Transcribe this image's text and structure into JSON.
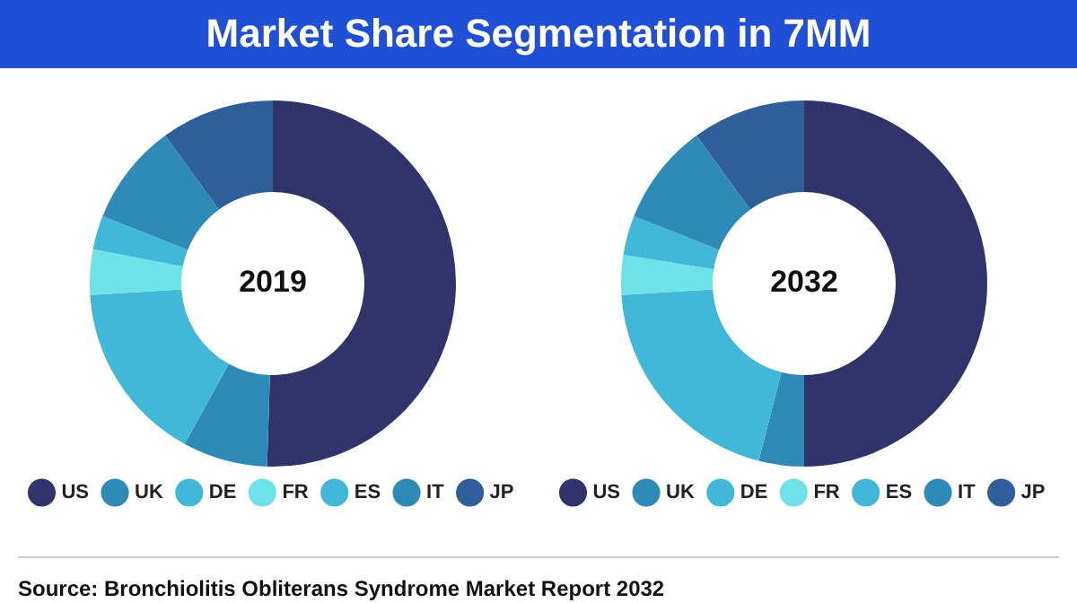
{
  "chart_data": [
    {
      "type": "donut",
      "title": "Market Share Segmentation in 7MM",
      "subtitle": "2019",
      "categories": [
        "US",
        "UK",
        "DE",
        "FR",
        "ES",
        "IT",
        "JP"
      ],
      "values": [
        50.5,
        7.5,
        16,
        4,
        3,
        9,
        10
      ],
      "colors": [
        "#31336b",
        "#2e8bb8",
        "#42b8d8",
        "#6ce3e8",
        "#42b8d8",
        "#2e8bb8",
        "#2e5f9a"
      ],
      "legend": "bottom",
      "annotations": [
        "Source: Bronchiolitis Obliterans Syndrome Market Report 2032"
      ]
    },
    {
      "type": "donut",
      "subtitle": "2032",
      "categories": [
        "US",
        "UK",
        "DE",
        "FR",
        "ES",
        "IT",
        "JP"
      ],
      "values": [
        50,
        4,
        20,
        3.5,
        3.5,
        9,
        10
      ],
      "colors": [
        "#31336b",
        "#2e8bb8",
        "#42b8d8",
        "#6ce3e8",
        "#42b8d8",
        "#2e8bb8",
        "#2e5f9a"
      ],
      "legend": "bottom"
    }
  ]
}
